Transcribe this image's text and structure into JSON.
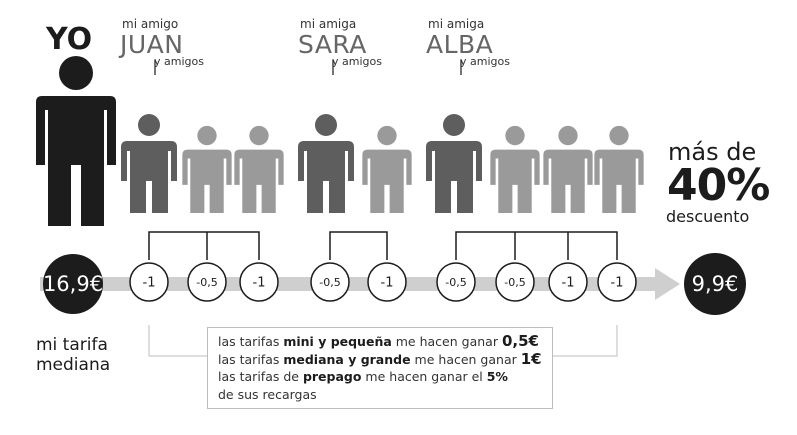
{
  "me": {
    "label": "YO",
    "tariff_value": "16,9€",
    "tariff_label_1": "mi tarifa",
    "tariff_label_2": "mediana"
  },
  "friends": [
    {
      "prefix": "mi amigo",
      "name": "JUAN",
      "suffix": "y amigos"
    },
    {
      "prefix": "mi amiga",
      "name": "SARA",
      "suffix": "y amigos"
    },
    {
      "prefix": "mi amiga",
      "name": "ALBA",
      "suffix": "y amigos"
    }
  ],
  "discounts": [
    "-1",
    "-0,5",
    "-1",
    "-0,5",
    "-1",
    "-0,5",
    "-0,5",
    "-1",
    "-1"
  ],
  "result": {
    "value": "9,9€",
    "line1": "más de",
    "line2": "40%",
    "line3": "descuento"
  },
  "info": {
    "l1_pre": "las tarifas ",
    "l1_bold": "mini y pequeña",
    "l1_mid": " me hacen ganar ",
    "l1_val": "0,5€",
    "l2_pre": "las tarifas ",
    "l2_bold": "mediana y grande",
    "l2_mid": " me hacen ganar ",
    "l2_val": "1€",
    "l3_pre": "las tarifas de ",
    "l3_bold": "prepago",
    "l3_mid": " me hacen ganar el ",
    "l3_val": "5%",
    "l4": "de sus recargas"
  },
  "colors": {
    "me": "#1c1c1c",
    "friend": "#5e5e5e",
    "contact": "#9a9a9a",
    "arrow": "#cfcfcf"
  }
}
